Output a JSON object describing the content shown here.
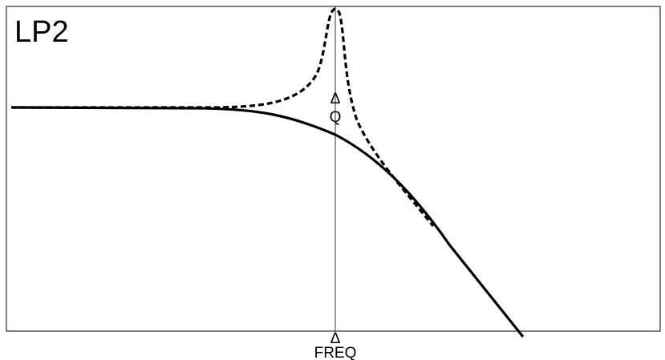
{
  "title": "LP2",
  "markers": {
    "q_label": "Q",
    "freq_label": "FREQ",
    "triangle_glyph": "Δ"
  },
  "curves": [
    {
      "role": "base-response",
      "style": "solid"
    },
    {
      "role": "resonant-response",
      "style": "dashed"
    }
  ],
  "colors": {
    "background": "#ffffff",
    "line": "#000000"
  }
}
